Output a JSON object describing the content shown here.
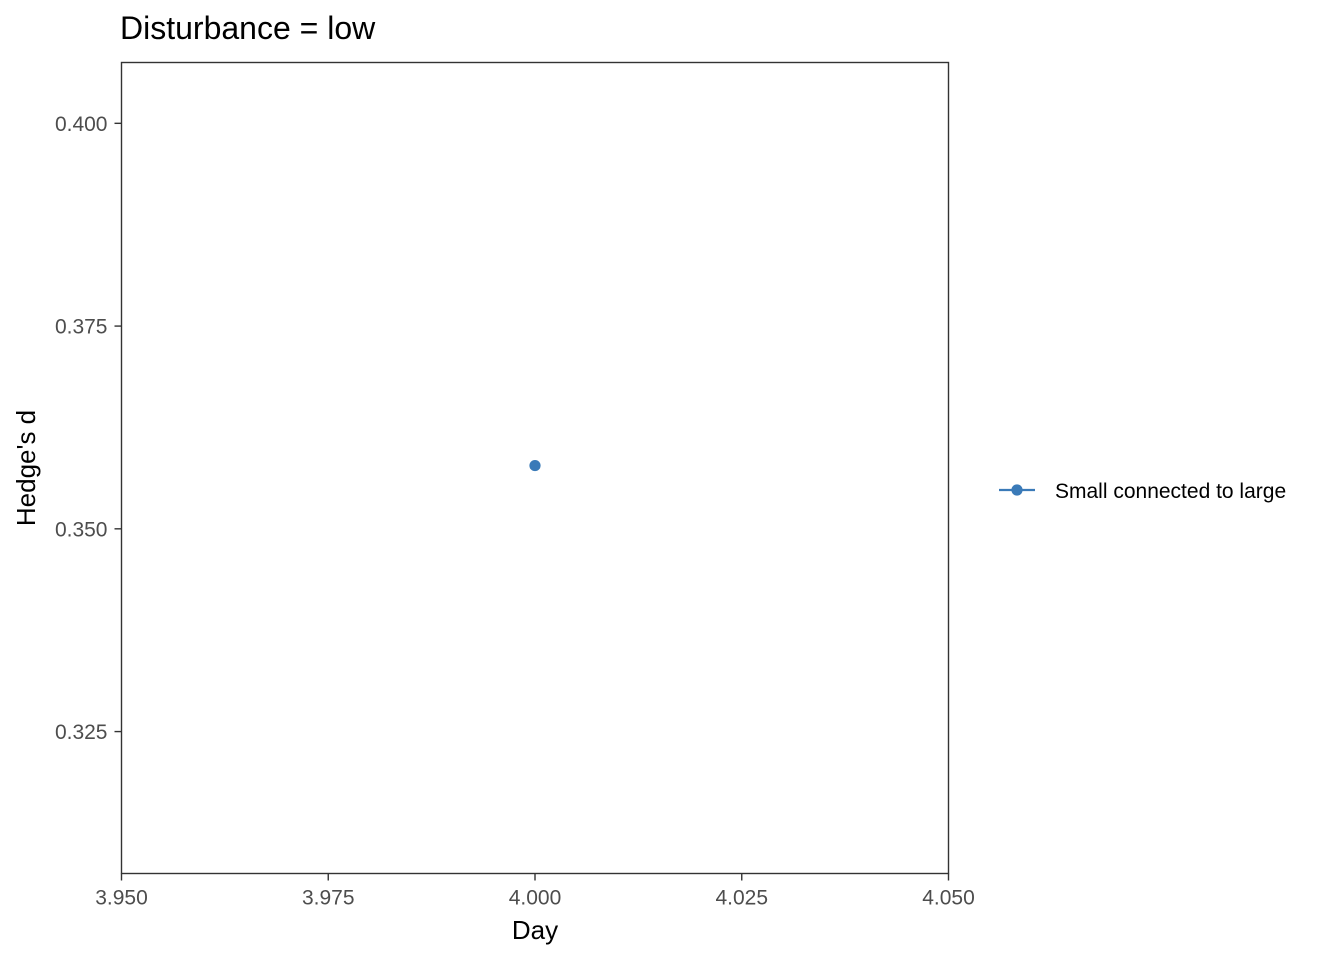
{
  "chart_data": {
    "type": "scatter",
    "title": "Disturbance = low",
    "xlabel": "Day",
    "ylabel": "Hedge's d",
    "xlim": [
      3.95,
      4.05
    ],
    "ylim": [
      0.3075,
      0.4075
    ],
    "x_ticks": [
      3.95,
      3.975,
      4.0,
      4.025,
      4.05
    ],
    "x_tick_labels": [
      "3.950",
      "3.975",
      "4.000",
      "4.025",
      "4.050"
    ],
    "y_ticks": [
      0.325,
      0.35,
      0.375,
      0.4
    ],
    "y_tick_labels": [
      "0.325",
      "0.350",
      "0.375",
      "0.400"
    ],
    "grid": false,
    "legend_position": "right",
    "series": [
      {
        "name": "Small connected to large",
        "color": "#3a7ab8",
        "x": [
          4.0
        ],
        "y": [
          0.3578
        ]
      }
    ]
  }
}
